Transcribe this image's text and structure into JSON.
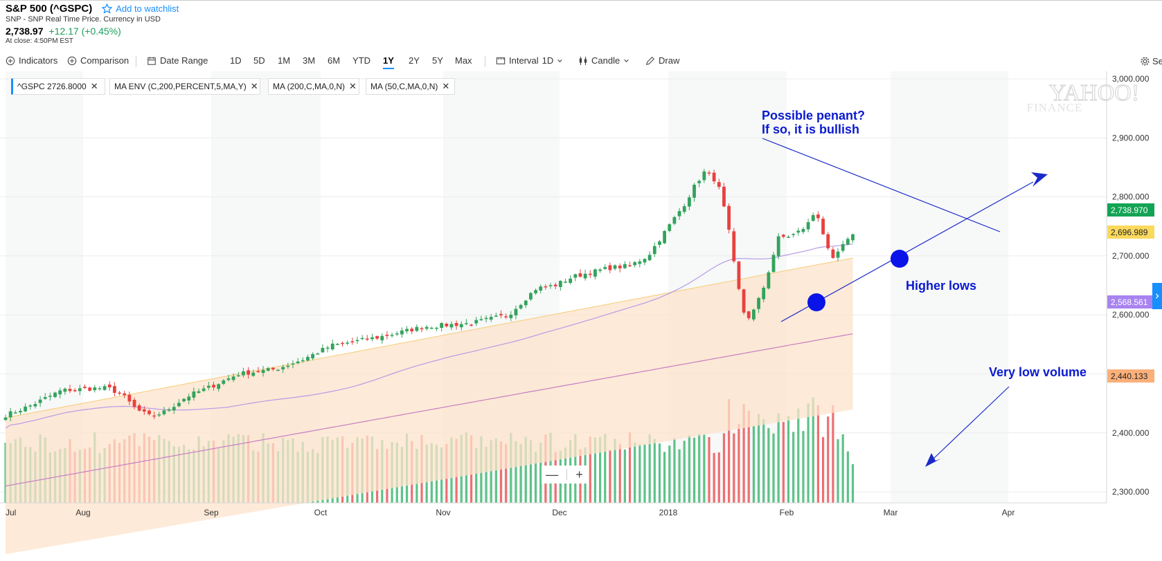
{
  "header": {
    "title": "S&P 500 (^GSPC)",
    "watchlist_label": "Add to watchlist",
    "subtitle": "SNP - SNP Real Time Price. Currency in USD",
    "price": "2,738.97",
    "change": "+12.17 (+0.45%)",
    "close_time": "At close: 4:50PM EST"
  },
  "toolbar": {
    "indicators": "Indicators",
    "comparison": "Comparison",
    "date_range": "Date Range",
    "ranges": [
      "1D",
      "5D",
      "1M",
      "3M",
      "6M",
      "YTD",
      "1Y",
      "2Y",
      "5Y",
      "Max"
    ],
    "active_range": "1Y",
    "interval_label": "Interval",
    "interval_value": "1D",
    "candle": "Candle",
    "draw": "Draw",
    "settings": "Se"
  },
  "chips": [
    {
      "label": "^GSPC  2726.8000"
    },
    {
      "label": "MA ENV (C,200,PERCENT,5,MA,Y)"
    },
    {
      "label": "MA (200,C,MA,0,N)"
    },
    {
      "label": "MA (50,C,MA,0,N)"
    }
  ],
  "watermark": {
    "line1": "YAHOO!",
    "line2": "FINANCE"
  },
  "zoom": {
    "minus": "—",
    "plus": "+"
  },
  "colors": {
    "up": "#33a35c",
    "down": "#e8413f",
    "volume_up": "#5ec289",
    "volume_down": "#ee6f70",
    "ma50": "#b59be8",
    "ma200": "#c77ec4",
    "envelope_fill": "#fde3cb",
    "envelope_upper": "#f6cd78",
    "annotation": "#0a1ad0",
    "price_tag": "#12a454",
    "env_upper_tag": "#fbd95d",
    "ma_tag": "#a883f0",
    "env_lower_tag": "#fbb07a"
  },
  "chart_data": {
    "type": "candlestick",
    "title": "S&P 500 (^GSPC)",
    "xlabel": "",
    "ylabel": "",
    "x_ticks": [
      "Jul",
      "Aug",
      "Sep",
      "Oct",
      "Nov",
      "Dec",
      "2018",
      "Feb",
      "Mar",
      "Apr"
    ],
    "y_ticks": [
      "2,300.000",
      "2,400.000",
      "2,500.000",
      "2,600.000",
      "2,700.000",
      "2,800.000",
      "2,900.000",
      "3,000.000"
    ],
    "ylim": [
      2225,
      3010
    ],
    "price_tags": {
      "last_close": "2,738.970",
      "envelope_upper": "2,696.989",
      "ma_200": "2,568.561",
      "envelope_lower": "2,440.133"
    },
    "annotations": {
      "pennant": [
        "Possible penant?",
        "If so, it is bullish"
      ],
      "higher_lows": "Higher lows",
      "low_volume": "Very low volume"
    },
    "monthly_closes": [
      {
        "month": "Jul",
        "close": 2470.3
      },
      {
        "month": "Aug",
        "close": 2471.7
      },
      {
        "month": "Sep",
        "close": 2519.4
      },
      {
        "month": "Oct",
        "close": 2575.3
      },
      {
        "month": "Nov",
        "close": 2647.6
      },
      {
        "month": "Dec",
        "close": 2673.6
      },
      {
        "month": "Jan",
        "close": 2823.8
      },
      {
        "month": "Feb",
        "close": 2713.8
      },
      {
        "month": "Mar",
        "close": 2738.97
      }
    ]
  }
}
